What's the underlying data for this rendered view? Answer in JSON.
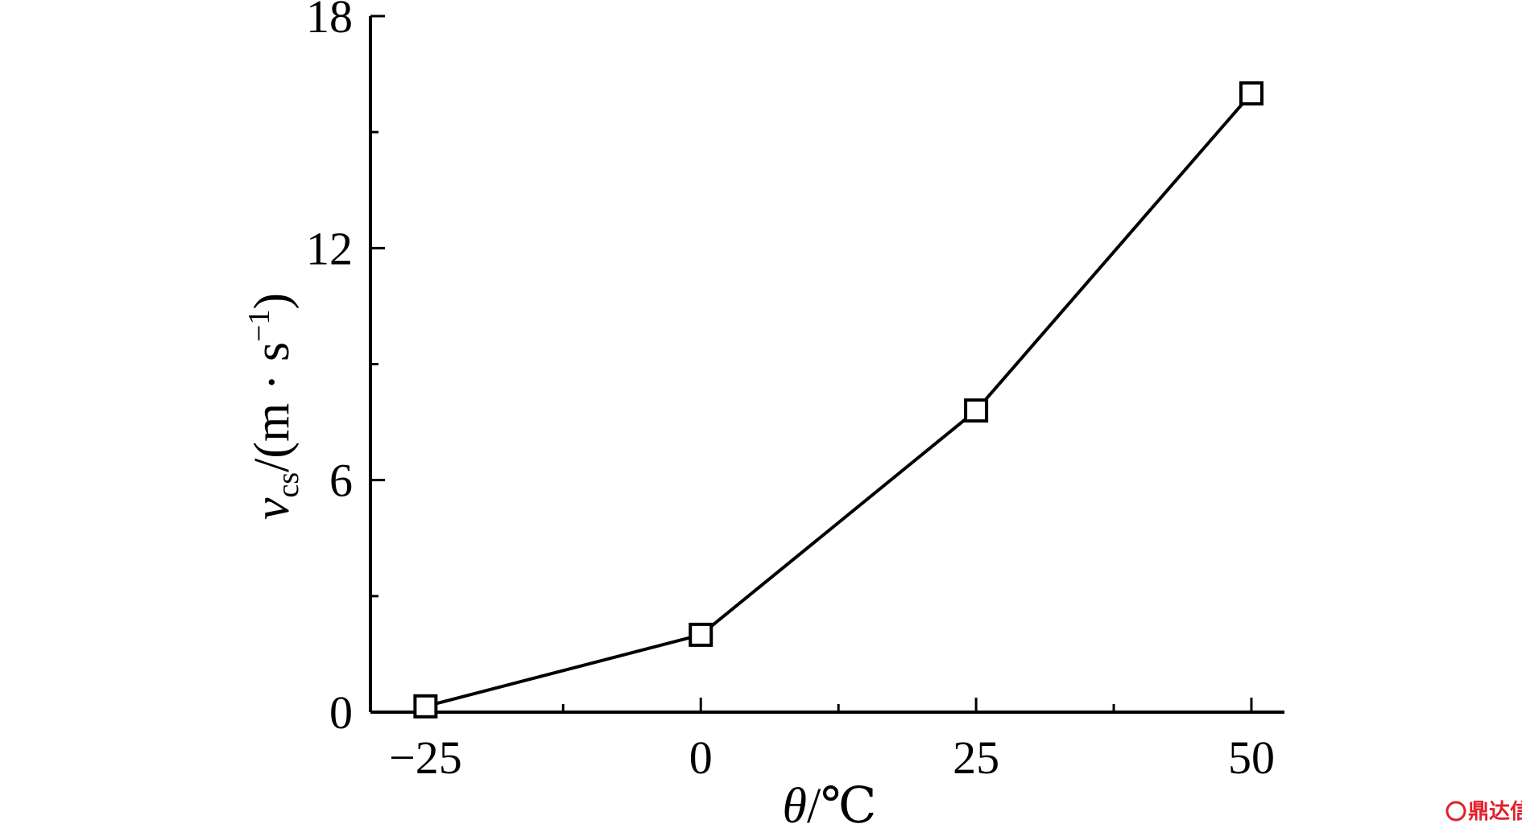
{
  "chart_data": {
    "type": "line",
    "x": [
      -25,
      0,
      25,
      50
    ],
    "xlabel": {
      "symbol": "θ",
      "unit": "/℃"
    },
    "ylabel": {
      "symbol": "v",
      "subscript": "cs",
      "unit": "/(m · s",
      "superscript": "−1",
      "close": ")"
    },
    "xlim": [
      -30,
      53
    ],
    "ylim": [
      0,
      18
    ],
    "x_ticks": [
      -25,
      0,
      25,
      50
    ],
    "x_tick_labels": [
      "−25",
      "0",
      "25",
      "50"
    ],
    "x_minor_ticks": [
      -12.5,
      12.5,
      37.5
    ],
    "y_ticks": [
      0,
      6,
      12,
      18
    ],
    "y_tick_labels": [
      "0",
      "6",
      "12",
      "18"
    ],
    "y_minor_ticks": [
      3,
      9,
      15
    ],
    "series": [
      {
        "values": [
          0.15,
          2.0,
          7.8,
          16.0
        ],
        "marker": "open-square",
        "color": "#000000"
      }
    ],
    "grid": false,
    "legend": "none"
  },
  "watermark": {
    "text": "鼎达信",
    "color": "#e0202a"
  }
}
